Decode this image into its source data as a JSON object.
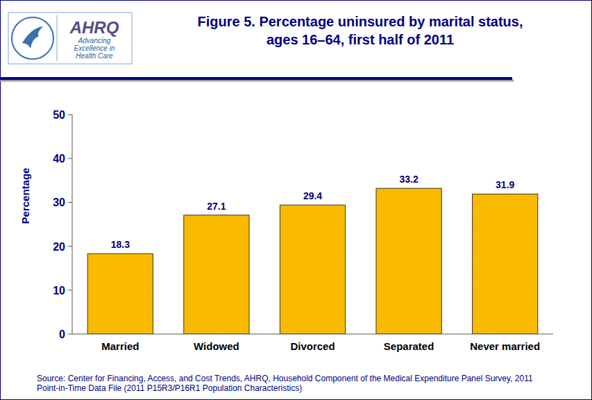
{
  "chart_data": {
    "type": "bar",
    "title": "Figure 5. Percentage uninsured by marital status,",
    "subtitle": "ages 16–64, first half of 2011",
    "y_label": "Percentage",
    "categories": [
      "Married",
      "Widowed",
      "Divorced",
      "Separated",
      "Never married"
    ],
    "values": [
      18.3,
      27.1,
      29.4,
      33.2,
      31.9
    ],
    "color": "#FFC000",
    "ylim": [
      0,
      50
    ],
    "yticks": [
      0,
      10,
      20,
      30,
      40,
      50
    ],
    "grid": false,
    "data_labels": true,
    "source": "Source: Center for Financing, Access, and Cost Trends, AHRQ, Household Component of the Medical Expenditure Panel Survey, 2011 Point-in-Time Data File (2011 P15R3/P16R1 Population Characteristics)"
  },
  "logo": {
    "name": "AHRQ",
    "tagline": [
      "Advancing",
      "Excellence in",
      "Health Care"
    ]
  }
}
